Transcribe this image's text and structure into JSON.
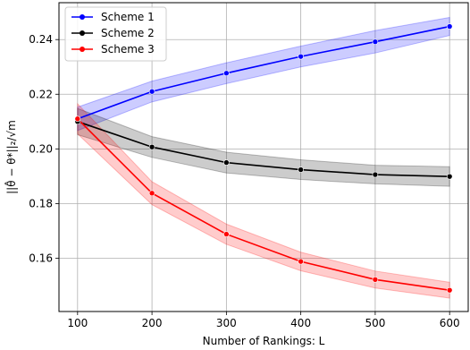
{
  "chart_data": {
    "type": "line",
    "xlabel": "Number of Rankings: L",
    "ylabel": "||θ̂ − θ*||₂/√m",
    "xlim": [
      75,
      625
    ],
    "ylim": [
      0.1405,
      0.2535
    ],
    "xticks": [
      100,
      200,
      300,
      400,
      500,
      600
    ],
    "yticks": [
      0.16,
      0.18,
      0.2,
      0.22,
      0.24
    ],
    "ytick_labels": [
      "0.16",
      "0.18",
      "0.20",
      "0.22",
      "0.24"
    ],
    "grid": true,
    "legend_position": "top-left",
    "x": [
      100,
      200,
      300,
      400,
      500,
      600
    ],
    "series": [
      {
        "name": "Scheme 1",
        "color": "#0000ff",
        "values": [
          0.211,
          0.221,
          0.2277,
          0.2338,
          0.2392,
          0.2448
        ],
        "upper": [
          0.2153,
          0.2248,
          0.2315,
          0.2376,
          0.2433,
          0.2481
        ],
        "lower": [
          0.2067,
          0.2172,
          0.2239,
          0.23,
          0.2351,
          0.2415
        ]
      },
      {
        "name": "Scheme 2",
        "color": "#000000",
        "values": [
          0.21,
          0.2007,
          0.195,
          0.1924,
          0.1906,
          0.1899
        ],
        "upper": [
          0.2148,
          0.2045,
          0.1988,
          0.196,
          0.194,
          0.1935
        ],
        "lower": [
          0.2052,
          0.1969,
          0.1912,
          0.1888,
          0.1872,
          0.1863
        ]
      },
      {
        "name": "Scheme 3",
        "color": "#ff0000",
        "values": [
          0.211,
          0.1838,
          0.1688,
          0.1588,
          0.1522,
          0.1483
        ],
        "upper": [
          0.2165,
          0.188,
          0.1725,
          0.1622,
          0.1553,
          0.1512
        ],
        "lower": [
          0.2055,
          0.1796,
          0.1651,
          0.1554,
          0.1491,
          0.1454
        ]
      }
    ]
  }
}
